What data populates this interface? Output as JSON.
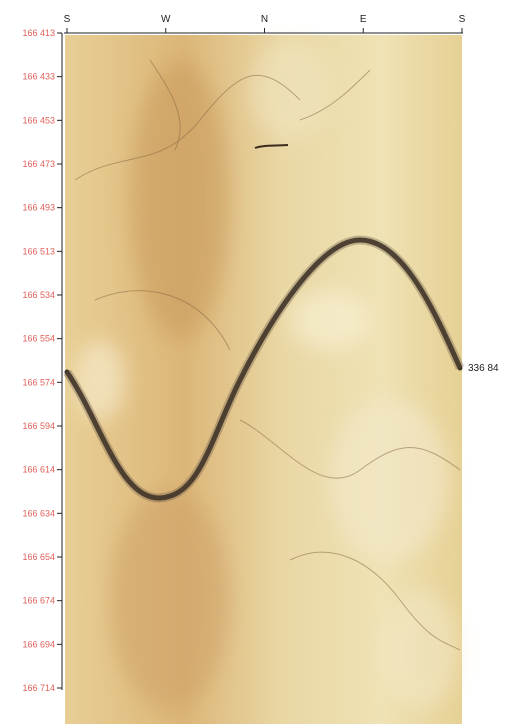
{
  "compass": [
    "S",
    "W",
    "N",
    "E",
    "S"
  ],
  "depths": [
    "166 413",
    "166 433",
    "166 453",
    "166 473",
    "166 493",
    "166 513",
    "166 534",
    "166 554",
    "166 574",
    "166 594",
    "166 614",
    "166 634",
    "166 654",
    "166 674",
    "166 694",
    "166 714"
  ],
  "annotation": "336 84"
}
